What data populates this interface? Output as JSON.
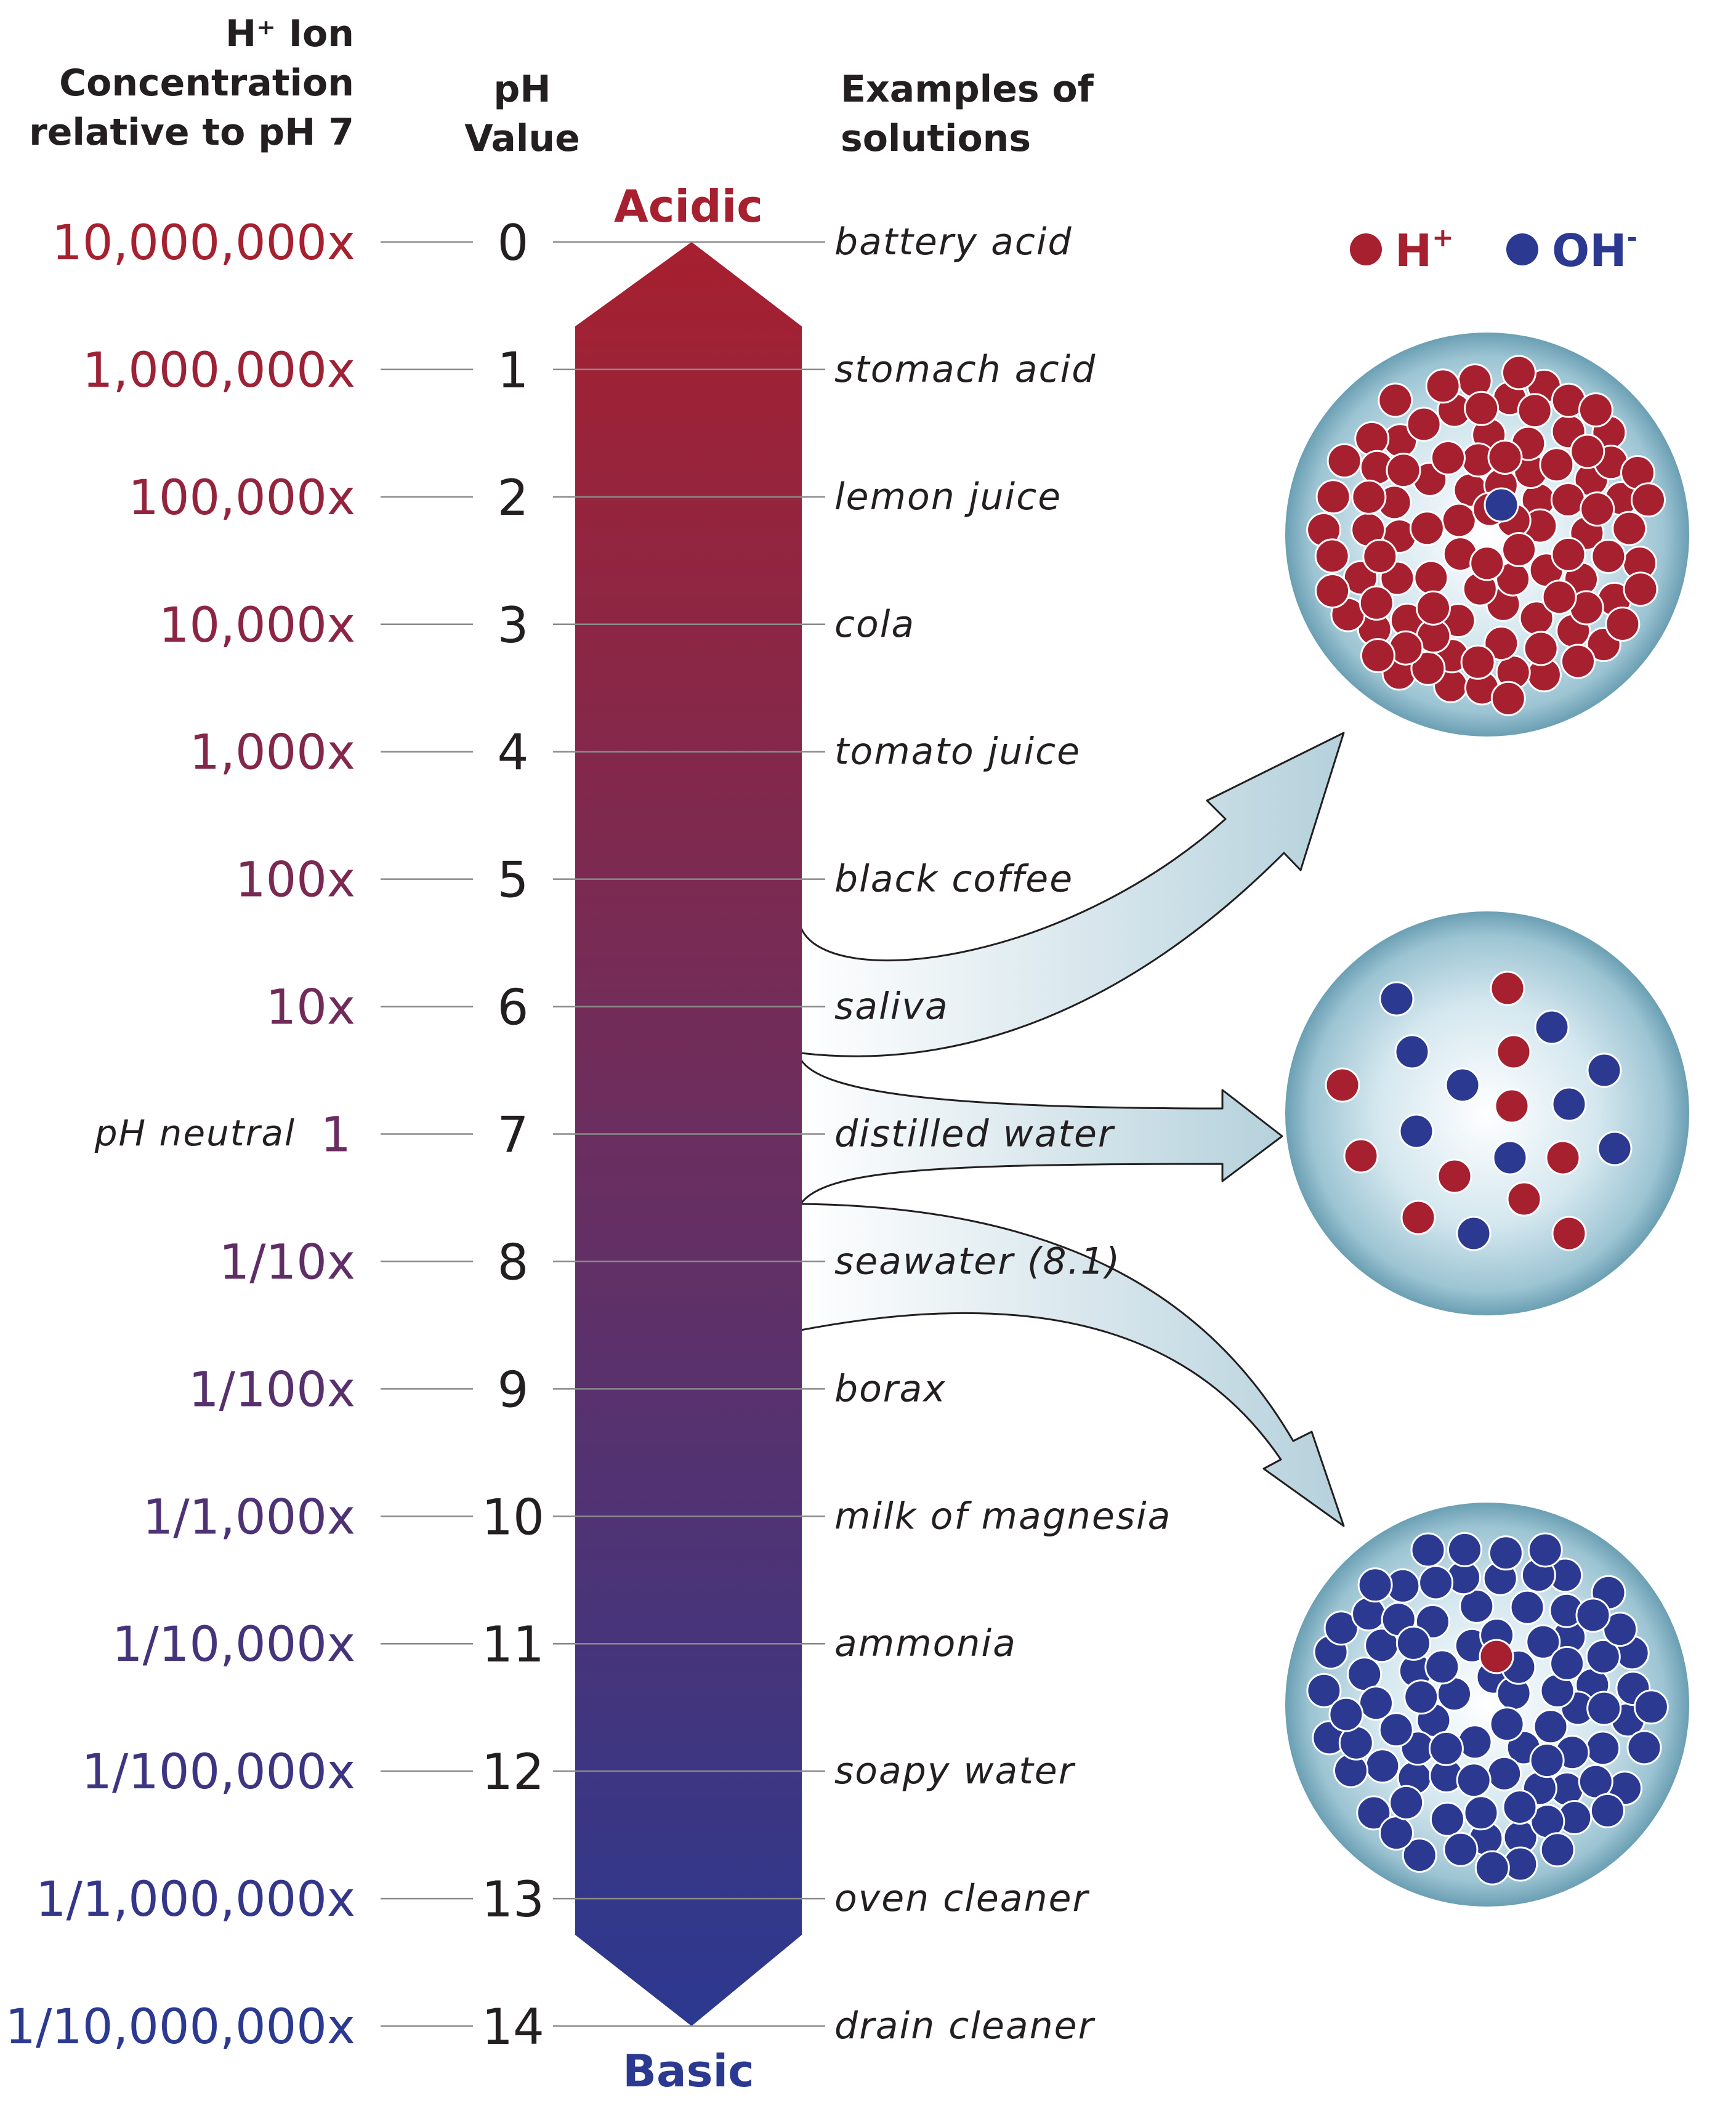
{
  "headers": {
    "concentration": [
      "H⁺ Ion",
      "Concentration",
      "relative to pH 7"
    ],
    "ph": [
      "pH",
      "Value"
    ],
    "examples": [
      "Examples of",
      "solutions"
    ]
  },
  "end_labels": {
    "top": "Acidic",
    "bottom": "Basic"
  },
  "neutral_note": "pH neutral",
  "scale": [
    {
      "ph": "0",
      "concentration": "10,000,000x",
      "example": "battery acid"
    },
    {
      "ph": "1",
      "concentration": "1,000,000x",
      "example": "stomach acid"
    },
    {
      "ph": "2",
      "concentration": "100,000x",
      "example": "lemon juice"
    },
    {
      "ph": "3",
      "concentration": "10,000x",
      "example": "cola"
    },
    {
      "ph": "4",
      "concentration": "1,000x",
      "example": "tomato juice"
    },
    {
      "ph": "5",
      "concentration": "100x",
      "example": "black coffee"
    },
    {
      "ph": "6",
      "concentration": "10x",
      "example": "saliva"
    },
    {
      "ph": "7",
      "concentration": "1",
      "example": "distilled water"
    },
    {
      "ph": "8",
      "concentration": "1/10x",
      "example": "seawater (8.1)"
    },
    {
      "ph": "9",
      "concentration": "1/100x",
      "example": "borax"
    },
    {
      "ph": "10",
      "concentration": "1/1,000x",
      "example": "milk of magnesia"
    },
    {
      "ph": "11",
      "concentration": "1/10,000x",
      "example": "ammonia"
    },
    {
      "ph": "12",
      "concentration": "1/100,000x",
      "example": "soapy water"
    },
    {
      "ph": "13",
      "concentration": "1/1,000,000x",
      "example": "oven cleaner"
    },
    {
      "ph": "14",
      "concentration": "1/10,000,000x",
      "example": "drain cleaner"
    }
  ],
  "legend": {
    "h_ion": {
      "label": "H",
      "superscript": "+",
      "color": "#a6202f"
    },
    "oh_ion": {
      "label": "OH",
      "superscript": "-",
      "color": "#2b3990"
    }
  },
  "colors": {
    "acidic": "#a6202f",
    "basic": "#2b3990",
    "sphere": "#8fbccd",
    "arrow": "#bfd6e0"
  },
  "icons": [
    "acidic-ion-sphere-icon",
    "neutral-ion-sphere-icon",
    "basic-ion-sphere-icon"
  ]
}
